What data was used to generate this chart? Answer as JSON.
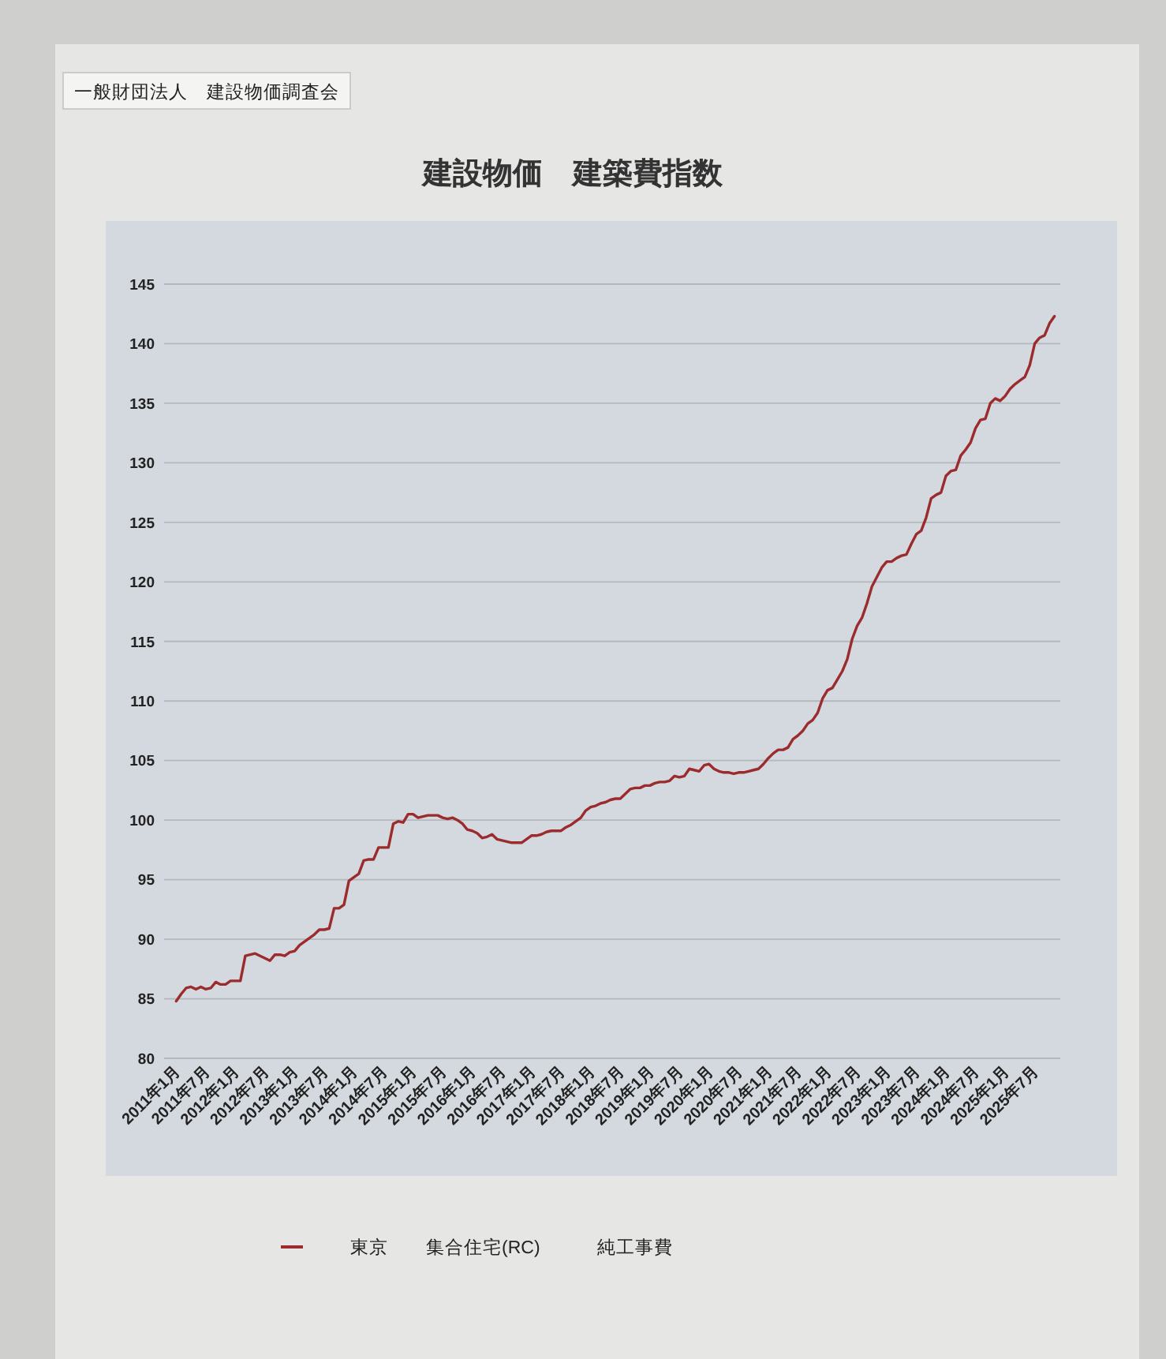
{
  "chart_data": {
    "type": "line",
    "title": "建設物価　建築費指数",
    "annotations": [
      "一般財団法人　建設物価調査会"
    ],
    "categories": [
      "2011年1月",
      null,
      null,
      null,
      null,
      null,
      "2011年7月",
      null,
      null,
      null,
      null,
      null,
      "2012年1月",
      null,
      null,
      null,
      null,
      null,
      "2012年7月",
      null,
      null,
      null,
      null,
      null,
      "2013年1月",
      null,
      null,
      null,
      null,
      null,
      "2013年7月",
      null,
      null,
      null,
      null,
      null,
      "2014年1月",
      null,
      null,
      null,
      null,
      null,
      "2014年7月",
      null,
      null,
      null,
      null,
      null,
      "2015年1月",
      null,
      null,
      null,
      null,
      null,
      "2015年7月",
      null,
      null,
      null,
      null,
      null,
      "2016年1月",
      null,
      null,
      null,
      null,
      null,
      "2016年7月",
      null,
      null,
      null,
      null,
      null,
      "2017年1月",
      null,
      null,
      null,
      null,
      null,
      "2017年7月",
      null,
      null,
      null,
      null,
      null,
      "2018年1月",
      null,
      null,
      null,
      null,
      null,
      "2018年7月",
      null,
      null,
      null,
      null,
      null,
      "2019年1月",
      null,
      null,
      null,
      null,
      null,
      "2019年7月",
      null,
      null,
      null,
      null,
      null,
      "2020年1月",
      null,
      null,
      null,
      null,
      null,
      "2020年7月",
      null,
      null,
      null,
      null,
      null,
      "2021年1月",
      null,
      null,
      null,
      null,
      null,
      "2021年7月",
      null,
      null,
      null,
      null,
      null,
      "2022年1月",
      null,
      null,
      null,
      null,
      null,
      "2022年7月",
      null,
      null,
      null,
      null,
      null,
      "2023年1月",
      null,
      null,
      null,
      null,
      null,
      "2023年7月",
      null,
      null,
      null,
      null,
      null,
      "2024年1月",
      null,
      null,
      null,
      null,
      null,
      "2024年7月",
      null,
      null,
      null,
      null,
      null,
      "2025年1月",
      null,
      null,
      null,
      null,
      null,
      "2025年7月",
      null,
      null,
      null,
      null
    ],
    "series": [
      {
        "name": "東京　　集合住宅(RC)　　　純工事費",
        "color": "#9c2b2e",
        "values": [
          84.8,
          85.4,
          85.9,
          86.0,
          85.8,
          86.0,
          85.8,
          85.9,
          86.4,
          86.2,
          86.2,
          86.5,
          86.5,
          86.5,
          88.6,
          88.7,
          88.8,
          88.6,
          88.4,
          88.2,
          88.7,
          88.7,
          88.6,
          88.9,
          89.0,
          89.5,
          89.8,
          90.1,
          90.4,
          90.8,
          90.8,
          90.9,
          92.6,
          92.6,
          92.9,
          94.9,
          95.2,
          95.5,
          96.6,
          96.7,
          96.7,
          97.7,
          97.7,
          97.7,
          99.7,
          99.9,
          99.8,
          100.5,
          100.5,
          100.2,
          100.3,
          100.4,
          100.4,
          100.4,
          100.2,
          100.1,
          100.2,
          100.0,
          99.7,
          99.2,
          99.1,
          98.9,
          98.5,
          98.6,
          98.8,
          98.4,
          98.3,
          98.2,
          98.1,
          98.1,
          98.1,
          98.4,
          98.7,
          98.7,
          98.8,
          99.0,
          99.1,
          99.1,
          99.1,
          99.4,
          99.6,
          99.9,
          100.2,
          100.8,
          101.1,
          101.2,
          101.4,
          101.5,
          101.7,
          101.8,
          101.8,
          102.2,
          102.6,
          102.7,
          102.7,
          102.9,
          102.9,
          103.1,
          103.2,
          103.2,
          103.3,
          103.7,
          103.6,
          103.7,
          104.3,
          104.2,
          104.1,
          104.6,
          104.7,
          104.3,
          104.1,
          104.0,
          104.0,
          103.9,
          104.0,
          104.0,
          104.1,
          104.2,
          104.3,
          104.7,
          105.2,
          105.6,
          105.9,
          105.9,
          106.1,
          106.8,
          107.1,
          107.5,
          108.1,
          108.4,
          109.0,
          110.2,
          110.9,
          111.1,
          111.8,
          112.5,
          113.5,
          115.2,
          116.3,
          117.0,
          118.2,
          119.6,
          120.4,
          121.2,
          121.7,
          121.7,
          122.0,
          122.2,
          122.3,
          123.2,
          124.0,
          124.3,
          125.4,
          127.0,
          127.3,
          127.5,
          128.9,
          129.3,
          129.4,
          130.6,
          131.1,
          131.7,
          132.9,
          133.6,
          133.7,
          135.0,
          135.4,
          135.2,
          135.6,
          136.2,
          136.6,
          136.9,
          137.2,
          138.2,
          140.0,
          140.5,
          140.7,
          141.7,
          142.3
        ]
      }
    ],
    "ylim": [
      80,
      145
    ],
    "yticks": [
      80,
      85,
      90,
      95,
      100,
      105,
      110,
      115,
      120,
      125,
      130,
      135,
      140,
      145
    ],
    "grid": "y",
    "legend": "bottom",
    "line_style": "solid"
  }
}
